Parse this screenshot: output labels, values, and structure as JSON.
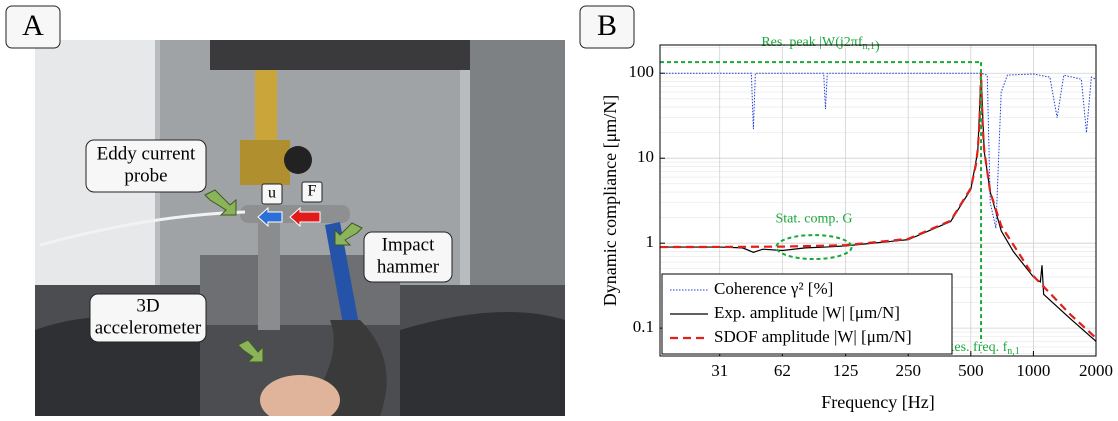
{
  "panel_a": {
    "label": "A",
    "callouts": {
      "probe": [
        "Eddy current",
        "probe"
      ],
      "u": "u",
      "force": "F",
      "hammer": [
        "Impact",
        "hammer"
      ],
      "accelerometer": [
        "3D",
        "accelerometer"
      ]
    }
  },
  "chart_data": {
    "type": "line",
    "panel_label": "B",
    "xlabel": "Frequency [Hz]",
    "ylabel": "Dynamic compliance [μm/N]",
    "log_x": true,
    "log_y": true,
    "grid": true,
    "legend": "lower left",
    "xlim": [
      16,
      2000
    ],
    "xticks": [
      31,
      62,
      125,
      250,
      500,
      1000,
      2000
    ],
    "ylim": [
      0.047,
      215
    ],
    "yticks": [
      0.1,
      1,
      10,
      100
    ],
    "series": [
      {
        "name": "Coherence γ² [%]",
        "color": "#1f3fd6",
        "style": "dotted",
        "x": [
          16,
          44,
          45,
          46,
          98,
          100,
          102,
          560,
          600,
          620,
          660,
          700,
          750,
          1000,
          1200,
          1300,
          1400,
          1700,
          1800,
          1900,
          2000
        ],
        "values": [
          100,
          100,
          22,
          100,
          100,
          38,
          100,
          100,
          95,
          3,
          1.5,
          60,
          95,
          98,
          90,
          30,
          95,
          85,
          20,
          90,
          85
        ]
      },
      {
        "name": "Exp. amplitude |W| [μm/N]",
        "color": "#000000",
        "style": "solid",
        "x": [
          16,
          31,
          40,
          45,
          50,
          62,
          80,
          100,
          125,
          250,
          400,
          500,
          540,
          560,
          580,
          620,
          700,
          800,
          1000,
          1080,
          1100,
          1120,
          1500,
          2000
        ],
        "values": [
          0.9,
          0.9,
          0.88,
          0.78,
          0.85,
          0.82,
          0.88,
          0.9,
          0.93,
          1.1,
          1.8,
          4.3,
          12,
          95,
          12,
          4,
          1.4,
          0.8,
          0.4,
          0.35,
          0.55,
          0.25,
          0.13,
          0.07
        ]
      },
      {
        "name": "SDOF amplitude |W| [μm/N]",
        "color": "#e0201b",
        "style": "dashed",
        "x": [
          16,
          31,
          62,
          125,
          250,
          400,
          500,
          530,
          540,
          550,
          560,
          570,
          580,
          620,
          700,
          1000,
          1500,
          2000
        ],
        "values": [
          0.9,
          0.903,
          0.911,
          0.947,
          1.124,
          1.84,
          4.44,
          8.6,
          12.8,
          24.7,
          100,
          24.2,
          12.4,
          3.99,
          1.6,
          0.411,
          0.146,
          0.0765
        ]
      }
    ],
    "annotations": {
      "peak": {
        "text": "Res. peak |W(j2πf",
        "sub": "n,1",
        "tail": ")",
        "value": 135,
        "x": 560
      },
      "static": {
        "text": "Stat. comp. G",
        "x": [
          62,
          125
        ],
        "value": 0.9
      },
      "freq": {
        "text": "Res. freq. f",
        "sub": "n,1"
      }
    },
    "annotation_color": "#1aa83a"
  }
}
